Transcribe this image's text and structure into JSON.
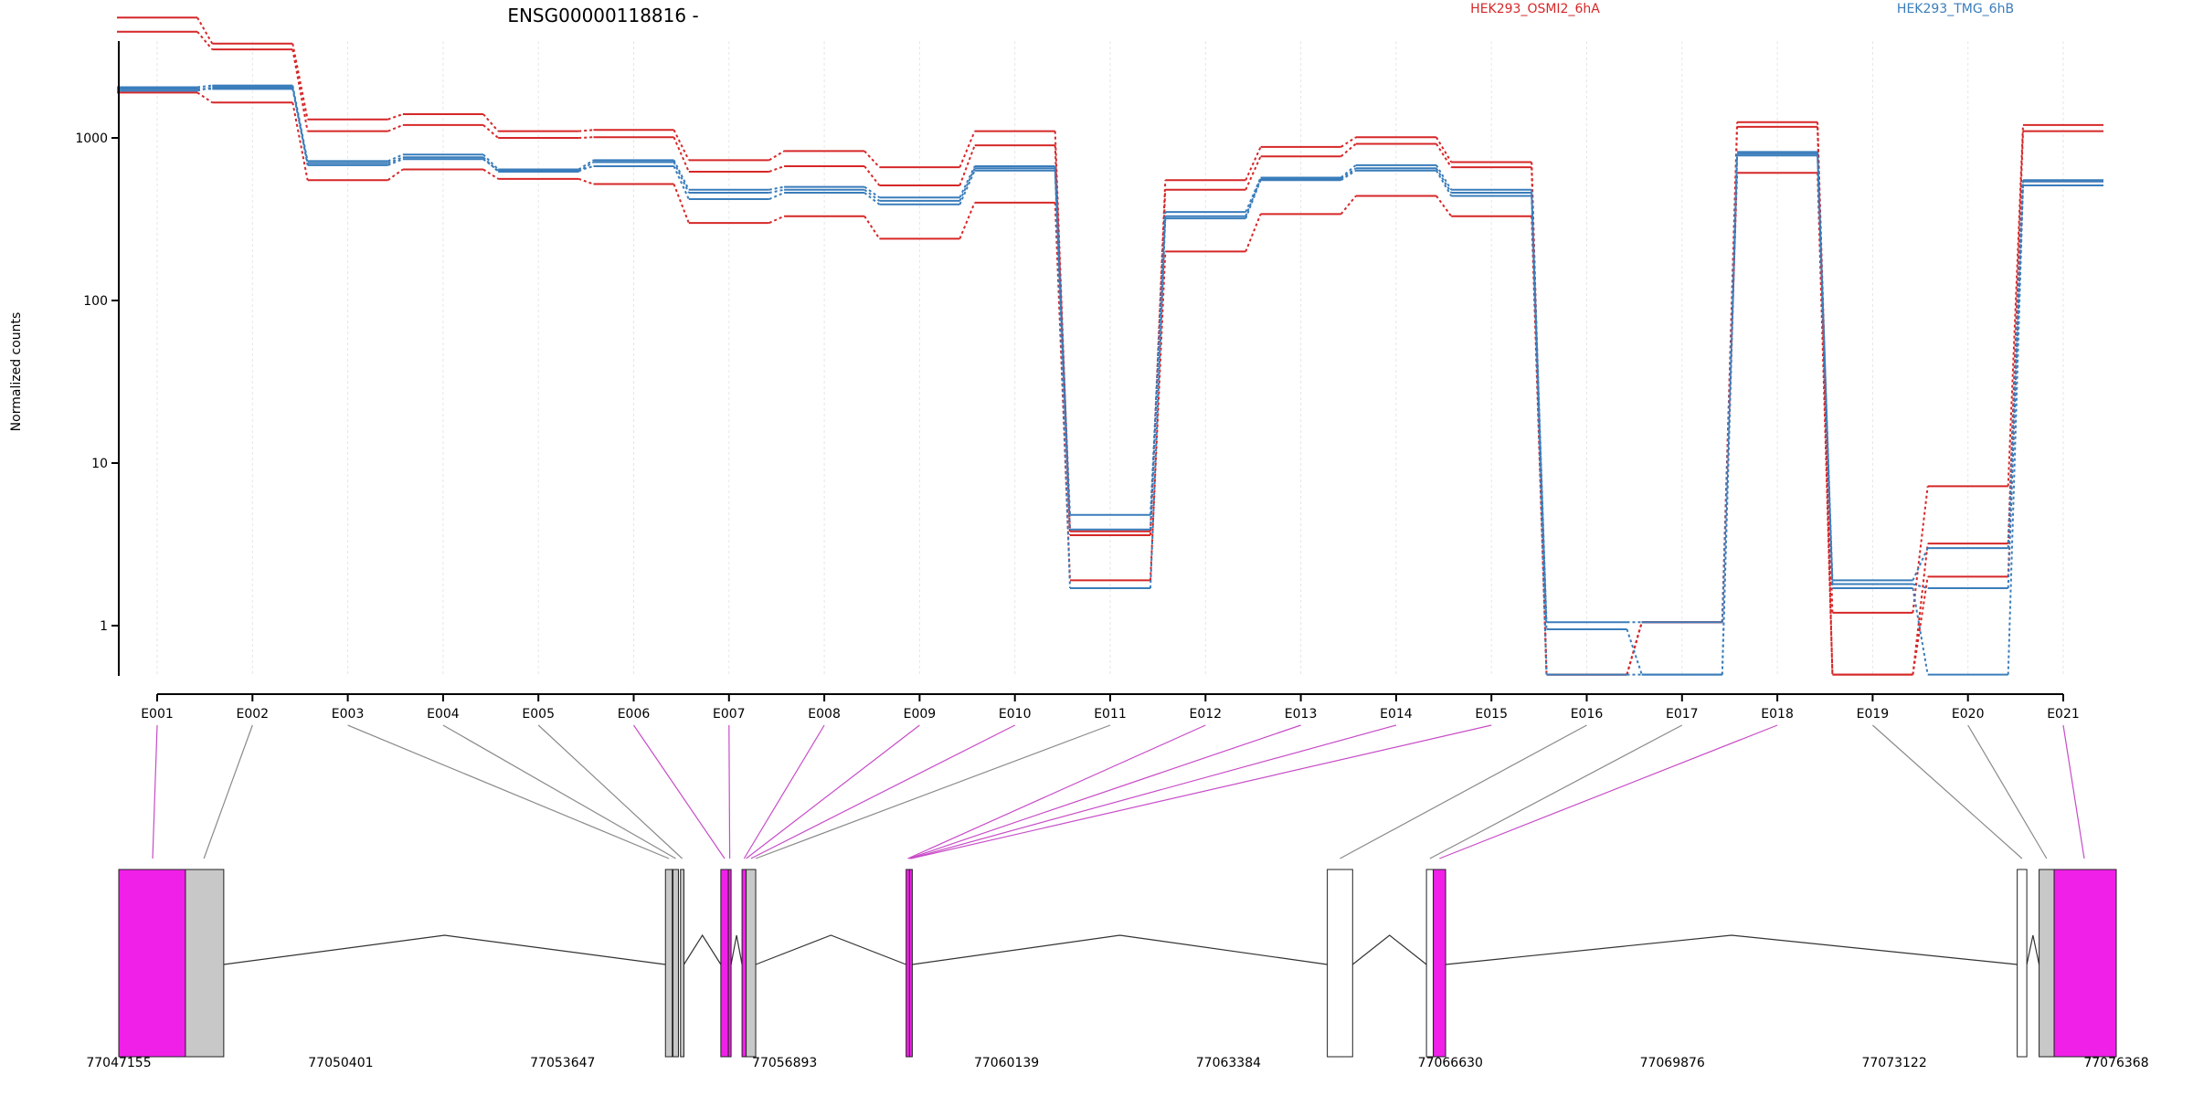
{
  "chart_data": {
    "type": "line",
    "title": "ENSG00000118816 -",
    "ylabel": "Normalized counts",
    "yscale": "log",
    "ylim": [
      0.4,
      8000
    ],
    "yticks": [
      1,
      10,
      100,
      1000
    ],
    "ytick_labels": [
      "1",
      "10",
      "100",
      "1000"
    ],
    "categories": [
      "E001",
      "E002",
      "E003",
      "E004",
      "E005",
      "E006",
      "E007",
      "E008",
      "E009",
      "E010",
      "E011",
      "E012",
      "E013",
      "E014",
      "E015",
      "E016",
      "E017",
      "E018",
      "E019",
      "E020",
      "E021"
    ],
    "groups": [
      {
        "name": "HEK293_OSMI2_6hA",
        "color": "#d62728"
      },
      {
        "name": "HEK293_TMG_6hB",
        "color": "#3a7dbb"
      }
    ],
    "series": [
      {
        "group": 0,
        "values": [
          5500,
          3800,
          1300,
          1400,
          1100,
          1120,
          730,
          830,
          660,
          1100,
          3.8,
          550,
          880,
          1010,
          710,
          0.5,
          1.05,
          1250,
          1.2,
          7.2,
          1200
        ]
      },
      {
        "group": 0,
        "values": [
          4500,
          3500,
          1100,
          1200,
          1000,
          1010,
          620,
          670,
          510,
          900,
          3.6,
          480,
          770,
          920,
          660,
          0.5,
          1.05,
          1170,
          0.5,
          3.2,
          1100
        ]
      },
      {
        "group": 0,
        "values": [
          1900,
          1650,
          550,
          640,
          560,
          520,
          300,
          330,
          240,
          400,
          1.9,
          200,
          340,
          440,
          330,
          0.5,
          1.05,
          610,
          0.5,
          2.0,
          540
        ]
      },
      {
        "group": 1,
        "values": [
          2050,
          2100,
          720,
          790,
          640,
          730,
          480,
          500,
          430,
          670,
          4.8,
          350,
          570,
          680,
          480,
          1.05,
          1.05,
          820,
          1.9,
          3.0,
          550
        ]
      },
      {
        "group": 1,
        "values": [
          2000,
          2000,
          700,
          760,
          620,
          710,
          460,
          480,
          410,
          650,
          3.9,
          330,
          560,
          650,
          460,
          0.95,
          0.5,
          800,
          1.8,
          1.7,
          540
        ]
      },
      {
        "group": 1,
        "values": [
          1950,
          2050,
          680,
          740,
          630,
          670,
          420,
          460,
          390,
          630,
          1.7,
          320,
          550,
          630,
          440,
          0.5,
          0.5,
          780,
          1.7,
          0.5,
          510
        ]
      }
    ],
    "genomic_axis": {
      "range": [
        77047155,
        77076368
      ],
      "ticks": [
        77047155,
        77050401,
        77053647,
        77056893,
        77060139,
        77063384,
        77066630,
        77069876,
        77073122,
        77076368
      ],
      "tick_labels": [
        "77047155",
        "77050401",
        "77053647",
        "77056893",
        "77060139",
        "77063384",
        "77066630",
        "77069876",
        "77073122",
        "77076368"
      ]
    },
    "gene_model": {
      "exon_colors": {
        "gray": "#c8c8c8",
        "magenta": "#f020e8",
        "white": "#ffffff"
      },
      "exons": [
        {
          "start": 77047155,
          "end": 77048130,
          "color": "magenta"
        },
        {
          "start": 77048130,
          "end": 77048690,
          "color": "gray"
        },
        {
          "start": 77055150,
          "end": 77055250,
          "color": "gray"
        },
        {
          "start": 77055260,
          "end": 77055340,
          "color": "gray"
        },
        {
          "start": 77055370,
          "end": 77055420,
          "color": "gray"
        },
        {
          "start": 77055960,
          "end": 77056070,
          "color": "magenta"
        },
        {
          "start": 77056070,
          "end": 77056110,
          "color": "magenta"
        },
        {
          "start": 77056270,
          "end": 77056330,
          "color": "magenta"
        },
        {
          "start": 77056330,
          "end": 77056470,
          "color": "gray"
        },
        {
          "start": 77058670,
          "end": 77058720,
          "color": "magenta"
        },
        {
          "start": 77058720,
          "end": 77058760,
          "color": "magenta"
        },
        {
          "start": 77064830,
          "end": 77065200,
          "color": "white"
        },
        {
          "start": 77066280,
          "end": 77066380,
          "color": "white"
        },
        {
          "start": 77066380,
          "end": 77066560,
          "color": "magenta"
        },
        {
          "start": 77074920,
          "end": 77075060,
          "color": "white"
        },
        {
          "start": 77075240,
          "end": 77075460,
          "color": "gray"
        },
        {
          "start": 77075460,
          "end": 77076368,
          "color": "magenta"
        }
      ],
      "introns": [
        [
          77048690,
          77055150
        ],
        [
          77055420,
          77055960
        ],
        [
          77056110,
          77056270
        ],
        [
          77056470,
          77058670
        ],
        [
          77058760,
          77064830
        ],
        [
          77065200,
          77066280
        ],
        [
          77066560,
          77074920
        ],
        [
          77075060,
          77075240
        ]
      ],
      "links": [
        {
          "exon": "E001",
          "pos": 77047650,
          "color": "magenta"
        },
        {
          "exon": "E002",
          "pos": 77048400,
          "color": "gray"
        },
        {
          "exon": "E003",
          "pos": 77055200,
          "color": "gray"
        },
        {
          "exon": "E004",
          "pos": 77055300,
          "color": "gray"
        },
        {
          "exon": "E005",
          "pos": 77055395,
          "color": "gray"
        },
        {
          "exon": "E006",
          "pos": 77056015,
          "color": "magenta"
        },
        {
          "exon": "E007",
          "pos": 77056090,
          "color": "magenta"
        },
        {
          "exon": "E008",
          "pos": 77056300,
          "color": "magenta"
        },
        {
          "exon": "E009",
          "pos": 77056330,
          "color": "magenta"
        },
        {
          "exon": "E010",
          "pos": 77056400,
          "color": "magenta"
        },
        {
          "exon": "E011",
          "pos": 77056470,
          "color": "gray"
        },
        {
          "exon": "E012",
          "pos": 77058695,
          "color": "magenta"
        },
        {
          "exon": "E013",
          "pos": 77058710,
          "color": "magenta"
        },
        {
          "exon": "E014",
          "pos": 77058730,
          "color": "magenta"
        },
        {
          "exon": "E015",
          "pos": 77058740,
          "color": "magenta"
        },
        {
          "exon": "E016",
          "pos": 77065015,
          "color": "gray"
        },
        {
          "exon": "E017",
          "pos": 77066330,
          "color": "gray"
        },
        {
          "exon": "E018",
          "pos": 77066470,
          "color": "magenta"
        },
        {
          "exon": "E019",
          "pos": 77074990,
          "color": "gray"
        },
        {
          "exon": "E020",
          "pos": 77075350,
          "color": "gray"
        },
        {
          "exon": "E021",
          "pos": 77075900,
          "color": "magenta"
        }
      ]
    }
  }
}
